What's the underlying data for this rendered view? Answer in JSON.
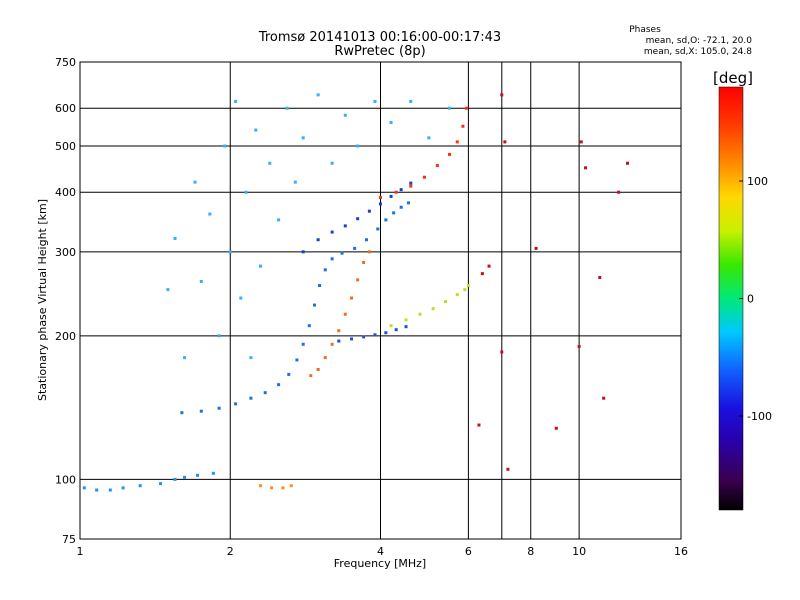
{
  "chart_data": {
    "type": "scatter",
    "title": "Tromsø 20141013 00:16:00-00:17:43",
    "subtitle": "RwPretec (8p)",
    "xlabel": "Frequency [MHz]",
    "ylabel": "Stationary phase Virtual Height [km]",
    "x_scale": "log",
    "y_scale": "log",
    "xlim": [
      1,
      16
    ],
    "ylim": [
      75,
      750
    ],
    "x_ticks": [
      1,
      2,
      4,
      6,
      8,
      10,
      16
    ],
    "x_minor_ticks": [
      7
    ],
    "y_ticks": [
      75,
      100,
      200,
      300,
      400,
      500,
      600,
      750
    ],
    "grid": true,
    "stats": {
      "heading": "Phases",
      "line1": "mean, sd,O: -72.1, 20.0",
      "line2": "mean, sd,X: 105.0, 24.8"
    },
    "colorbar": {
      "label": "[deg]",
      "ticks": [
        100,
        0,
        -100
      ],
      "range": [
        -180,
        180
      ],
      "colormap": "rainbow (black-purple-blue-cyan-green-yellow-orange-red)"
    },
    "series": [
      {
        "name": "",
        "description": "E-region trace",
        "color": "#1e90ff",
        "points": [
          [
            1.02,
            96
          ],
          [
            1.08,
            95
          ],
          [
            1.15,
            95
          ],
          [
            1.22,
            96
          ],
          [
            1.32,
            97
          ],
          [
            1.45,
            98
          ],
          [
            1.55,
            100
          ],
          [
            1.62,
            101
          ],
          [
            1.72,
            102
          ],
          [
            1.85,
            103
          ]
        ]
      },
      {
        "name": "",
        "description": "sporadic E patch",
        "color": "#ff8a1e",
        "points": [
          [
            2.3,
            97
          ],
          [
            2.42,
            96
          ],
          [
            2.55,
            96
          ],
          [
            2.65,
            97
          ]
        ]
      },
      {
        "name": "",
        "description": "F1 O-mode trace",
        "color": "#1f6fe0",
        "points": [
          [
            1.6,
            138
          ],
          [
            1.75,
            139
          ],
          [
            1.9,
            141
          ],
          [
            2.05,
            144
          ],
          [
            2.2,
            148
          ],
          [
            2.35,
            152
          ],
          [
            2.5,
            158
          ],
          [
            2.62,
            166
          ],
          [
            2.72,
            178
          ],
          [
            2.8,
            192
          ],
          [
            2.88,
            210
          ],
          [
            2.95,
            232
          ],
          [
            3.02,
            255
          ],
          [
            3.1,
            275
          ],
          [
            3.2,
            290
          ],
          [
            3.35,
            298
          ],
          [
            3.55,
            305
          ],
          [
            3.75,
            318
          ],
          [
            3.95,
            335
          ],
          [
            4.1,
            350
          ],
          [
            4.25,
            362
          ],
          [
            4.4,
            372
          ],
          [
            4.55,
            380
          ]
        ]
      },
      {
        "name": "",
        "description": "F2 O-mode trace",
        "color": "#1a3fd0",
        "points": [
          [
            2.8,
            300
          ],
          [
            3.0,
            318
          ],
          [
            3.2,
            330
          ],
          [
            3.4,
            340
          ],
          [
            3.6,
            352
          ],
          [
            3.8,
            365
          ],
          [
            4.0,
            378
          ],
          [
            4.2,
            392
          ],
          [
            4.4,
            405
          ],
          [
            4.6,
            418
          ]
        ]
      },
      {
        "name": "",
        "description": "F1 X-mode trace",
        "color": "#e87020",
        "points": [
          [
            2.9,
            165
          ],
          [
            3.0,
            170
          ],
          [
            3.1,
            180
          ],
          [
            3.2,
            192
          ],
          [
            3.3,
            205
          ],
          [
            3.4,
            222
          ],
          [
            3.5,
            240
          ],
          [
            3.6,
            262
          ],
          [
            3.7,
            285
          ],
          [
            3.8,
            300
          ]
        ]
      },
      {
        "name": "",
        "description": "F2 X-mode trace",
        "color": "#ff3010",
        "points": [
          [
            4.0,
            390
          ],
          [
            4.3,
            400
          ],
          [
            4.6,
            412
          ],
          [
            4.9,
            430
          ],
          [
            5.2,
            455
          ],
          [
            5.5,
            480
          ],
          [
            5.7,
            510
          ],
          [
            5.85,
            550
          ],
          [
            5.95,
            600
          ]
        ]
      },
      {
        "name": "",
        "description": "lower X-mode branch",
        "color": "#b8e030",
        "points": [
          [
            4.2,
            210
          ],
          [
            4.5,
            216
          ],
          [
            4.8,
            222
          ],
          [
            5.1,
            228
          ],
          [
            5.4,
            236
          ],
          [
            5.7,
            244
          ],
          [
            5.9,
            250
          ],
          [
            6.0,
            255
          ]
        ]
      },
      {
        "name": "",
        "description": "lower O-mode branch",
        "color": "#2050d0",
        "points": [
          [
            3.3,
            195
          ],
          [
            3.5,
            197
          ],
          [
            3.7,
            199
          ],
          [
            3.9,
            201
          ],
          [
            4.1,
            203
          ],
          [
            4.3,
            206
          ],
          [
            4.5,
            209
          ]
        ]
      },
      {
        "name": "",
        "description": "broad spread-F cloud",
        "color": "#30b0ff",
        "points": [
          [
            1.5,
            250
          ],
          [
            1.55,
            320
          ],
          [
            1.62,
            180
          ],
          [
            1.7,
            420
          ],
          [
            1.75,
            260
          ],
          [
            1.82,
            360
          ],
          [
            1.9,
            200
          ],
          [
            1.95,
            500
          ],
          [
            2.0,
            300
          ],
          [
            2.05,
            620
          ],
          [
            2.1,
            240
          ],
          [
            2.15,
            400
          ],
          [
            2.2,
            180
          ],
          [
            2.25,
            540
          ],
          [
            2.3,
            280
          ],
          [
            2.4,
            460
          ],
          [
            2.5,
            350
          ],
          [
            2.6,
            600
          ],
          [
            2.7,
            420
          ],
          [
            2.8,
            520
          ],
          [
            3.0,
            640
          ],
          [
            3.2,
            460
          ],
          [
            3.4,
            580
          ],
          [
            3.6,
            500
          ],
          [
            3.9,
            620
          ],
          [
            4.2,
            560
          ],
          [
            4.6,
            620
          ],
          [
            5.0,
            520
          ],
          [
            5.5,
            600
          ]
        ]
      },
      {
        "name": "",
        "description": "scattered points",
        "color": "#c01020",
        "points": [
          [
            6.3,
            130
          ],
          [
            6.4,
            270
          ],
          [
            6.6,
            280
          ],
          [
            7.0,
            640
          ],
          [
            7.0,
            185
          ],
          [
            7.1,
            510
          ],
          [
            7.2,
            105
          ],
          [
            8.2,
            305
          ],
          [
            9.0,
            128
          ],
          [
            10.0,
            190
          ],
          [
            10.1,
            510
          ],
          [
            10.3,
            450
          ],
          [
            11.0,
            265
          ],
          [
            11.2,
            148
          ],
          [
            12.0,
            400
          ],
          [
            12.5,
            460
          ]
        ]
      }
    ]
  }
}
